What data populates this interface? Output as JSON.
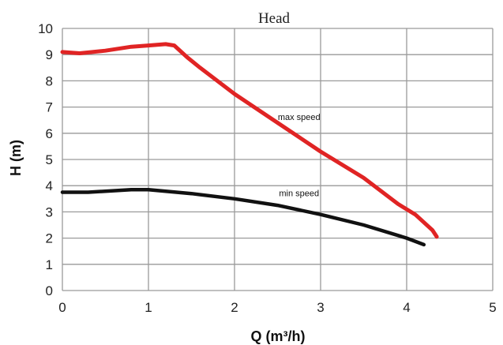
{
  "chart_data": {
    "type": "line",
    "title": "Head",
    "xlabel": "Q (m³/h)",
    "ylabel": "H (m)",
    "xlim": [
      0,
      5
    ],
    "ylim": [
      0,
      10
    ],
    "xticks": [
      0,
      1,
      2,
      3,
      4,
      5
    ],
    "yticks": [
      0,
      1,
      2,
      3,
      4,
      5,
      6,
      7,
      8,
      9,
      10
    ],
    "grid": true,
    "series": [
      {
        "color": "#e02424",
        "x": [
          0,
          0.2,
          0.5,
          0.8,
          1.0,
          1.2,
          1.3,
          1.45,
          1.6,
          2.0,
          2.5,
          3.0,
          3.5,
          3.9,
          4.1,
          4.3,
          4.35
        ],
        "y": [
          9.1,
          9.05,
          9.15,
          9.3,
          9.35,
          9.4,
          9.35,
          8.9,
          8.5,
          7.5,
          6.4,
          5.3,
          4.3,
          3.3,
          2.9,
          2.3,
          2.05
        ]
      },
      {
        "color": "#111111",
        "x": [
          0,
          0.3,
          0.8,
          1.0,
          1.5,
          2.0,
          2.5,
          3.0,
          3.5,
          4.0,
          4.2
        ],
        "y": [
          3.75,
          3.75,
          3.85,
          3.85,
          3.7,
          3.5,
          3.25,
          2.9,
          2.5,
          2.0,
          1.75
        ]
      }
    ],
    "annotations": [
      {
        "text": "max speed",
        "x": 2.75,
        "y": 6.5
      },
      {
        "text": "min speed",
        "x": 2.75,
        "y": 3.6
      }
    ]
  }
}
